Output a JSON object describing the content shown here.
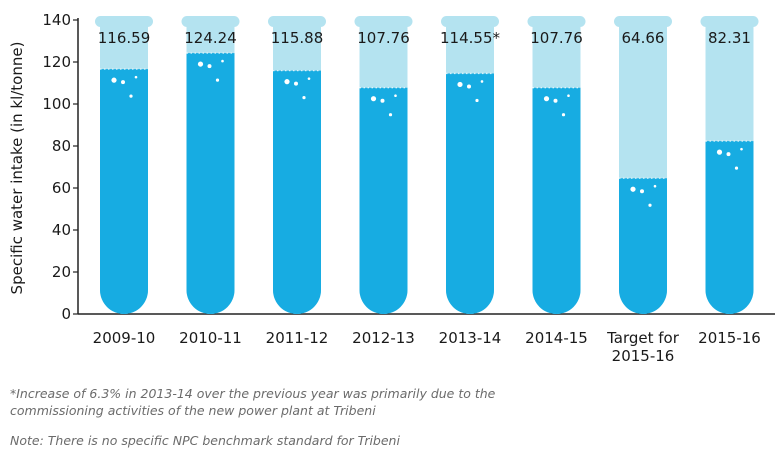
{
  "chart_data": {
    "type": "bar",
    "ylabel": "Specific water intake (in kl/tonne)",
    "ylim": [
      0,
      140
    ],
    "yticks": [
      0,
      20,
      40,
      60,
      80,
      100,
      120,
      140
    ],
    "categories": [
      [
        "2009-10"
      ],
      [
        "2010-11"
      ],
      [
        "2011-12"
      ],
      [
        "2012-13"
      ],
      [
        "2013-14"
      ],
      [
        "2014-15"
      ],
      [
        "Target for",
        "2015-16"
      ],
      [
        "2015-16"
      ]
    ],
    "values": [
      116.59,
      124.24,
      115.88,
      107.76,
      114.55,
      107.76,
      64.66,
      82.31
    ],
    "value_labels": [
      "116.59",
      "124.24",
      "115.88",
      "107.76",
      "114.55*",
      "107.76",
      "64.66",
      "82.31"
    ],
    "colors": {
      "tube": "#b4e3f0",
      "liquid": "#17ace2",
      "axis": "#222222"
    }
  },
  "notes": {
    "footnote": "*Increase of 6.3% in 2013-14 over the previous year was primarily due to the commissioning activities of the new power plant at Tribeni",
    "note": "Note: There is no specific NPC benchmark standard for Tribeni"
  }
}
